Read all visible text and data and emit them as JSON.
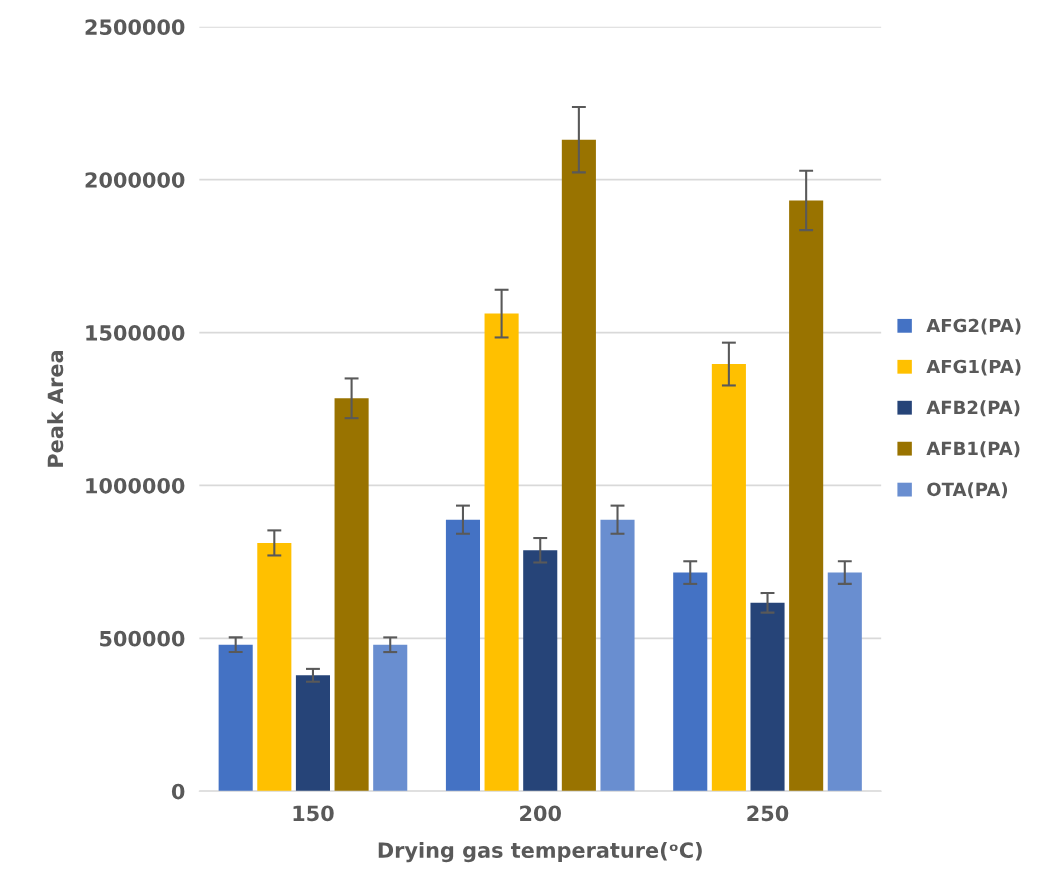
{
  "chart_data": {
    "type": "bar",
    "xlabel": "Drying gas temperature(ᵒC)",
    "ylabel": "Peak Area",
    "categories": [
      "150",
      "200",
      "250"
    ],
    "series": [
      {
        "name": "AFG2(PA)",
        "color": "#4472c4",
        "values": [
          479000,
          888000,
          715000
        ],
        "errors": [
          24000,
          46000,
          37000
        ]
      },
      {
        "name": "AFG1(PA)",
        "color": "#ffc000",
        "values": [
          812000,
          1562000,
          1397000
        ],
        "errors": [
          41000,
          78000,
          70000
        ]
      },
      {
        "name": "AFB2(PA)",
        "color": "#264478",
        "values": [
          379000,
          788000,
          616000
        ],
        "errors": [
          21000,
          40000,
          32000
        ]
      },
      {
        "name": "AFB1(PA)",
        "color": "#997300",
        "values": [
          1285000,
          2131000,
          1932000
        ],
        "errors": [
          65000,
          107000,
          97000
        ]
      },
      {
        "name": "OTA(PA)",
        "color": "#698ed0",
        "values": [
          479000,
          888000,
          715000
        ],
        "errors": [
          24000,
          46000,
          37000
        ]
      }
    ],
    "ylim": [
      0,
      2500000
    ],
    "yticks": [
      0,
      500000,
      1000000,
      1500000,
      2000000,
      2500000
    ],
    "grid": "y",
    "legend": "right"
  }
}
